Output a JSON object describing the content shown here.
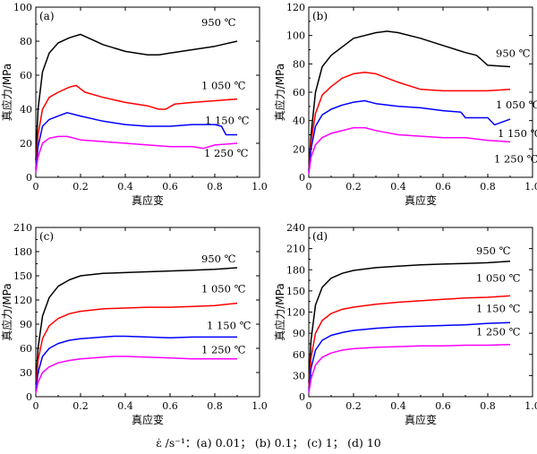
{
  "caption": "ε̇ /s⁻¹：(a) 0.01； (b) 0.1； (c) 1； (d) 10",
  "chart_data": [
    {
      "type": "line",
      "panel_label": "(a)",
      "xlabel": "真应变",
      "ylabel": "真应力/MPa",
      "xlim": [
        0,
        1.0
      ],
      "ylim": [
        0,
        100
      ],
      "xticks": [
        "0",
        "0.2",
        "0.4",
        "0.6",
        "0.8",
        "1.0"
      ],
      "yticks": [
        "0",
        "20",
        "40",
        "60",
        "80",
        "100"
      ],
      "series": [
        {
          "name": "950 ℃",
          "color": "#000000",
          "x": [
            0.0,
            0.01,
            0.03,
            0.06,
            0.1,
            0.15,
            0.2,
            0.25,
            0.3,
            0.4,
            0.5,
            0.55,
            0.6,
            0.7,
            0.8,
            0.9
          ],
          "y": [
            10,
            40,
            62,
            73,
            79,
            82,
            84,
            81,
            78,
            74,
            72,
            72,
            73,
            75,
            77,
            80
          ]
        },
        {
          "name": "1 050 ℃",
          "color": "#ff0000",
          "x": [
            0.0,
            0.01,
            0.03,
            0.06,
            0.1,
            0.15,
            0.18,
            0.22,
            0.3,
            0.4,
            0.5,
            0.55,
            0.58,
            0.62,
            0.7,
            0.8,
            0.9
          ],
          "y": [
            5,
            25,
            40,
            47,
            50,
            53,
            54,
            50,
            47,
            44,
            42,
            40,
            40,
            43,
            44,
            45,
            46
          ]
        },
        {
          "name": "1 150 ℃",
          "color": "#0000ff",
          "x": [
            0.0,
            0.01,
            0.03,
            0.06,
            0.1,
            0.14,
            0.2,
            0.3,
            0.4,
            0.5,
            0.6,
            0.7,
            0.8,
            0.83,
            0.85,
            0.9
          ],
          "y": [
            4,
            18,
            30,
            34,
            36,
            38,
            36,
            33,
            31,
            30,
            30,
            31,
            31,
            30,
            25,
            25
          ]
        },
        {
          "name": "1 250 ℃",
          "color": "#ff00ff",
          "x": [
            0.0,
            0.01,
            0.03,
            0.06,
            0.1,
            0.14,
            0.2,
            0.3,
            0.4,
            0.5,
            0.6,
            0.7,
            0.75,
            0.8,
            0.9
          ],
          "y": [
            3,
            12,
            20,
            23,
            24,
            24,
            22,
            21,
            20,
            19,
            18,
            18,
            17,
            19,
            20
          ]
        }
      ]
    },
    {
      "type": "line",
      "panel_label": "(b)",
      "xlabel": "真应变",
      "ylabel": "真应力/MPa",
      "xlim": [
        0,
        1.0
      ],
      "ylim": [
        0,
        120
      ],
      "xticks": [
        "0",
        "0.2",
        "0.4",
        "0.6",
        "0.8",
        "1.0"
      ],
      "yticks": [
        "0",
        "20",
        "40",
        "60",
        "80",
        "100",
        "120"
      ],
      "series": [
        {
          "name": "950 ℃",
          "color": "#000000",
          "x": [
            0.0,
            0.01,
            0.03,
            0.06,
            0.1,
            0.15,
            0.2,
            0.3,
            0.35,
            0.4,
            0.5,
            0.6,
            0.7,
            0.75,
            0.8,
            0.9
          ],
          "y": [
            5,
            30,
            60,
            78,
            86,
            92,
            98,
            102,
            103,
            102,
            98,
            93,
            88,
            86,
            79,
            78
          ]
        },
        {
          "name": "1 050 ℃",
          "color": "#ff0000",
          "x": [
            0.0,
            0.01,
            0.03,
            0.06,
            0.1,
            0.15,
            0.2,
            0.25,
            0.3,
            0.4,
            0.5,
            0.6,
            0.7,
            0.8,
            0.9
          ],
          "y": [
            4,
            25,
            45,
            58,
            64,
            70,
            73,
            74,
            73,
            67,
            62,
            61,
            61,
            61,
            62
          ]
        },
        {
          "name": "1 150 ℃",
          "color": "#0000ff",
          "x": [
            0.0,
            0.01,
            0.03,
            0.06,
            0.1,
            0.15,
            0.2,
            0.25,
            0.3,
            0.4,
            0.5,
            0.6,
            0.68,
            0.7,
            0.8,
            0.83,
            0.9
          ],
          "y": [
            3,
            20,
            36,
            44,
            48,
            51,
            53,
            54,
            52,
            50,
            49,
            47,
            46,
            42,
            42,
            37,
            41
          ]
        },
        {
          "name": "1 250 ℃",
          "color": "#ff00ff",
          "x": [
            0.0,
            0.01,
            0.03,
            0.06,
            0.1,
            0.15,
            0.2,
            0.25,
            0.3,
            0.4,
            0.5,
            0.6,
            0.7,
            0.8,
            0.9
          ],
          "y": [
            2,
            14,
            23,
            28,
            31,
            33,
            35,
            35,
            33,
            30,
            29,
            28,
            28,
            26,
            25
          ]
        }
      ]
    },
    {
      "type": "line",
      "panel_label": "(c)",
      "xlabel": "真应变",
      "ylabel": "真应力/MPa",
      "xlim": [
        0,
        1.0
      ],
      "ylim": [
        0,
        210
      ],
      "xticks": [
        "0",
        "0.2",
        "0.4",
        "0.6",
        "0.8",
        "1.0"
      ],
      "yticks": [
        "0",
        "30",
        "60",
        "90",
        "120",
        "150",
        "180",
        "210"
      ],
      "series": [
        {
          "name": "950 ℃",
          "color": "#000000",
          "x": [
            0.0,
            0.01,
            0.03,
            0.06,
            0.1,
            0.15,
            0.2,
            0.3,
            0.4,
            0.5,
            0.6,
            0.7,
            0.8,
            0.9
          ],
          "y": [
            15,
            60,
            100,
            123,
            137,
            145,
            150,
            153,
            154,
            155,
            156,
            157,
            158,
            160
          ]
        },
        {
          "name": "1 050 ℃",
          "color": "#ff0000",
          "x": [
            0.0,
            0.01,
            0.03,
            0.06,
            0.1,
            0.15,
            0.2,
            0.3,
            0.4,
            0.5,
            0.6,
            0.7,
            0.8,
            0.9
          ],
          "y": [
            10,
            45,
            72,
            88,
            97,
            103,
            106,
            109,
            110,
            111,
            111,
            112,
            113,
            116
          ]
        },
        {
          "name": "1 150 ℃",
          "color": "#0000ff",
          "x": [
            0.0,
            0.01,
            0.03,
            0.06,
            0.1,
            0.15,
            0.2,
            0.3,
            0.35,
            0.4,
            0.5,
            0.6,
            0.7,
            0.8,
            0.9
          ],
          "y": [
            7,
            30,
            50,
            60,
            66,
            70,
            72,
            74,
            75,
            75,
            74,
            73,
            74,
            74,
            74
          ]
        },
        {
          "name": "1 250 ℃",
          "color": "#ff00ff",
          "x": [
            0.0,
            0.01,
            0.03,
            0.06,
            0.1,
            0.15,
            0.2,
            0.3,
            0.35,
            0.4,
            0.5,
            0.6,
            0.7,
            0.8,
            0.9
          ],
          "y": [
            4,
            18,
            30,
            37,
            42,
            45,
            47,
            49,
            50,
            50,
            49,
            48,
            47,
            47,
            47
          ]
        }
      ]
    },
    {
      "type": "line",
      "panel_label": "(d)",
      "xlabel": "真应变",
      "ylabel": "真应力/MPa",
      "xlim": [
        0,
        1.0
      ],
      "ylim": [
        0,
        240
      ],
      "xticks": [
        "0",
        "0.2",
        "0.4",
        "0.6",
        "0.8",
        "1.0"
      ],
      "yticks": [
        "0",
        "30",
        "60",
        "90",
        "120",
        "150",
        "180",
        "210",
        "240"
      ],
      "series": [
        {
          "name": "950 ℃",
          "color": "#000000",
          "x": [
            0.0,
            0.01,
            0.03,
            0.06,
            0.1,
            0.15,
            0.2,
            0.3,
            0.4,
            0.5,
            0.6,
            0.7,
            0.8,
            0.9
          ],
          "y": [
            20,
            80,
            130,
            155,
            168,
            175,
            179,
            183,
            185,
            187,
            188,
            189,
            190,
            192
          ]
        },
        {
          "name": "1 050 ℃",
          "color": "#ff0000",
          "x": [
            0.0,
            0.01,
            0.03,
            0.06,
            0.1,
            0.15,
            0.2,
            0.3,
            0.4,
            0.5,
            0.6,
            0.7,
            0.8,
            0.9
          ],
          "y": [
            12,
            55,
            90,
            108,
            118,
            124,
            127,
            131,
            134,
            136,
            138,
            140,
            141,
            143
          ]
        },
        {
          "name": "1 150 ℃",
          "color": "#0000ff",
          "x": [
            0.0,
            0.01,
            0.03,
            0.06,
            0.1,
            0.15,
            0.2,
            0.3,
            0.4,
            0.5,
            0.6,
            0.7,
            0.8,
            0.9
          ],
          "y": [
            8,
            40,
            66,
            80,
            87,
            91,
            94,
            97,
            99,
            100,
            101,
            102,
            104,
            105
          ]
        },
        {
          "name": "1 250 ℃",
          "color": "#ff00ff",
          "x": [
            0.0,
            0.01,
            0.03,
            0.06,
            0.1,
            0.15,
            0.2,
            0.3,
            0.4,
            0.5,
            0.6,
            0.7,
            0.8,
            0.9
          ],
          "y": [
            5,
            25,
            45,
            56,
            62,
            66,
            68,
            70,
            71,
            72,
            72,
            73,
            73,
            74
          ]
        }
      ]
    }
  ]
}
